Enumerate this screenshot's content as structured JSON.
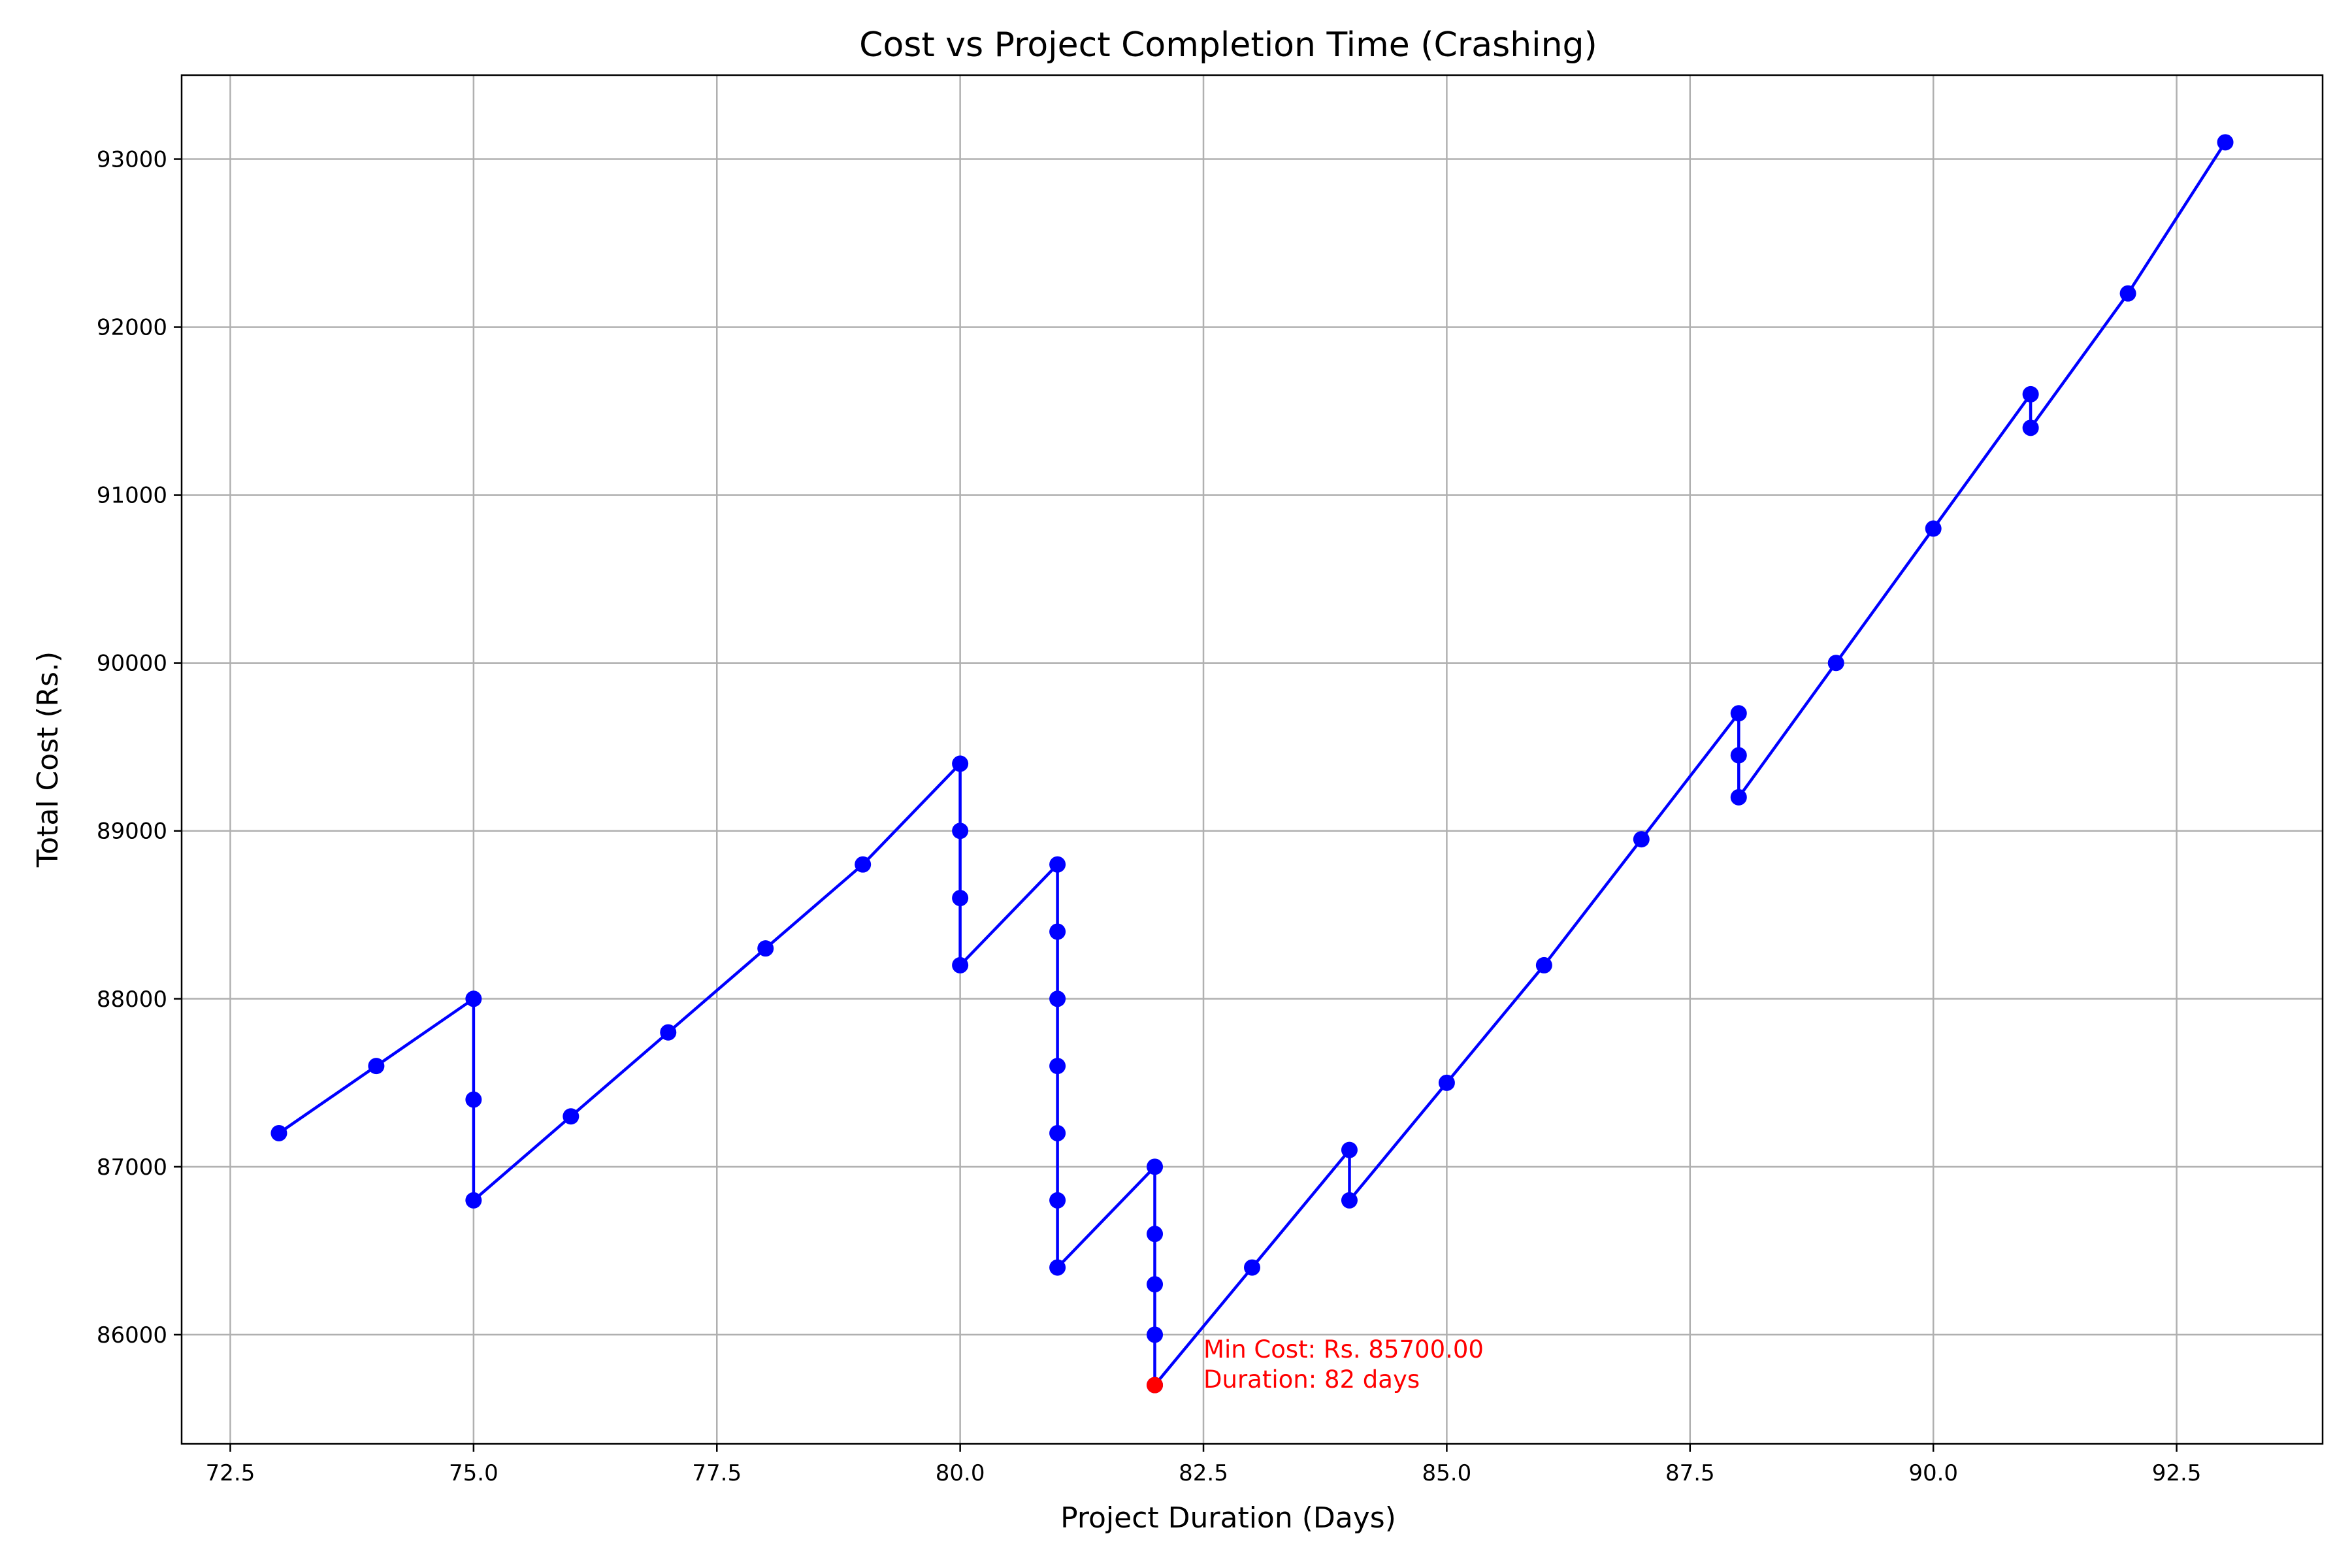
{
  "chart_data": {
    "type": "line",
    "title": "Cost vs Project Completion Time (Crashing)",
    "xlabel": "Project Duration (Days)",
    "ylabel": "Total Cost (Rs.)",
    "xlim": [
      72,
      94
    ],
    "ylim": [
      85350,
      93500
    ],
    "xticks": [
      72.5,
      75.0,
      77.5,
      80.0,
      82.5,
      85.0,
      87.5,
      90.0,
      92.5
    ],
    "xtick_labels": [
      "72.5",
      "75.0",
      "77.5",
      "80.0",
      "82.5",
      "85.0",
      "87.5",
      "90.0",
      "92.5"
    ],
    "yticks": [
      86000,
      87000,
      88000,
      89000,
      90000,
      91000,
      92000,
      93000
    ],
    "ytick_labels": [
      "86000",
      "87000",
      "88000",
      "89000",
      "90000",
      "91000",
      "92000",
      "93000"
    ],
    "grid": true,
    "series": [
      {
        "color": "#0000ff",
        "marker": "circle",
        "x": [
          93,
          92,
          91,
          91,
          90,
          89,
          88,
          88,
          88,
          87,
          86,
          85,
          84,
          84,
          83,
          82,
          82,
          82,
          82,
          82,
          81,
          81,
          81,
          81,
          81,
          81,
          81,
          80,
          80,
          80,
          80,
          79,
          78,
          77,
          76,
          75,
          75,
          75,
          74,
          73
        ],
        "y": [
          93100,
          92200,
          91400,
          91600,
          90800,
          90000,
          89200,
          89450,
          89700,
          88950,
          88200,
          87500,
          86800,
          87100,
          86400,
          85700,
          86000,
          86300,
          86600,
          87000,
          86400,
          86800,
          87200,
          87600,
          88000,
          88400,
          88800,
          88200,
          88600,
          89000,
          89400,
          88800,
          88300,
          87800,
          87300,
          86800,
          87400,
          88000,
          87600,
          87200
        ]
      }
    ],
    "highlight": {
      "x": 82,
      "y": 85700,
      "color": "#ff0000"
    },
    "annotation": {
      "lines": [
        "Min Cost: Rs. 85700.00",
        "Duration: 82 days"
      ],
      "x": 82.5,
      "y": 85700,
      "color": "#ff0000"
    }
  }
}
